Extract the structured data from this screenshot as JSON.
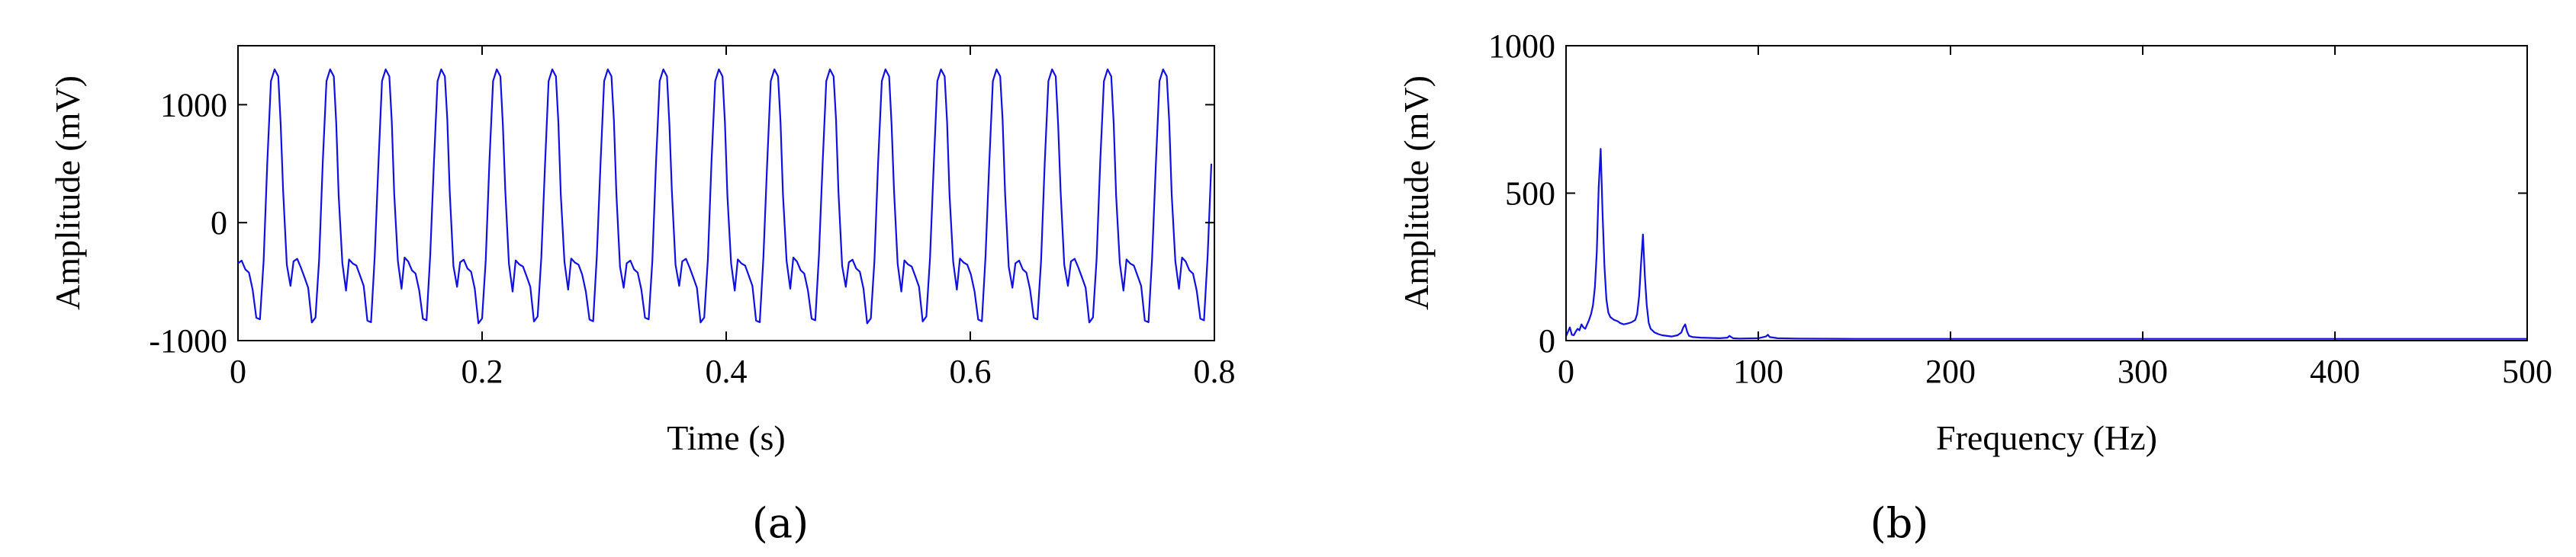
{
  "chart_data": [
    {
      "type": "line",
      "panel_label": "(a)",
      "xlabel": "Time (s)",
      "ylabel": "Amplitude (mV)",
      "xlim": [
        0,
        0.8
      ],
      "ylim": [
        -1000,
        1500
      ],
      "xticks": [
        0,
        0.2,
        0.4,
        0.6,
        0.8
      ],
      "xtick_labels": [
        "0",
        "0.2",
        "0.4",
        "0.6",
        "0.8"
      ],
      "yticks": [
        -1000,
        0,
        1000
      ],
      "ytick_labels": [
        "-1000",
        "0",
        "1000"
      ],
      "grid": false,
      "series": [
        {
          "color": "#1010e0",
          "period_s": 0.0455,
          "x": [
            0,
            0.003,
            0.006,
            0.009,
            0.012,
            0.015,
            0.018,
            0.021,
            0.024,
            0.027,
            0.03,
            0.033,
            0.035,
            0.037,
            0.04,
            0.043,
            0.046,
            0.049,
            0.052,
            0.055,
            0.058,
            0.061,
            0.064,
            0.067,
            0.07,
            0.073,
            0.076,
            0.079,
            0.081,
            0.083,
            0.086,
            0.089
          ],
          "y": [
            -320,
            -330,
            -380,
            -440,
            -560,
            -830,
            -820,
            -300,
            500,
            1200,
            1300,
            1240,
            850,
            250,
            -350,
            -560,
            -560,
            -610,
            -660,
            -690,
            -840,
            -820,
            -300,
            500,
            1200,
            1300,
            1240,
            850,
            250,
            -350,
            -560,
            -560
          ],
          "note_pattern": "repeating waveform, 17.6 cycles over 0.8 s; peaks ~1300 mV, troughs ~-840 mV"
        }
      ]
    },
    {
      "type": "line",
      "panel_label": "(b)",
      "xlabel": "Frequency (Hz)",
      "ylabel": "Amplitude (mV)",
      "xlim": [
        0,
        500
      ],
      "ylim": [
        0,
        1000
      ],
      "xticks": [
        0,
        100,
        200,
        300,
        400,
        500
      ],
      "xtick_labels": [
        "0",
        "100",
        "200",
        "300",
        "400",
        "500"
      ],
      "yticks": [
        0,
        500,
        1000
      ],
      "ytick_labels": [
        "0",
        "500",
        "1000"
      ],
      "grid": false,
      "series": [
        {
          "color": "#1010e0",
          "x": [
            0,
            1,
            2,
            3,
            4,
            5,
            6,
            7,
            8,
            9,
            10,
            11,
            12,
            13,
            14,
            15,
            16,
            17,
            18,
            19,
            20,
            21,
            22,
            23,
            24,
            25,
            26,
            27,
            28,
            30,
            32,
            34,
            36,
            37,
            38,
            39,
            40,
            41,
            42,
            43,
            44,
            46,
            48,
            50,
            55,
            58,
            60,
            61,
            62,
            63,
            64,
            66,
            70,
            80,
            84,
            85,
            86,
            87,
            90,
            100,
            104,
            105,
            106,
            110,
            120,
            150,
            200,
            250,
            300,
            350,
            400,
            450,
            500
          ],
          "y": [
            15,
            30,
            45,
            20,
            18,
            30,
            40,
            35,
            55,
            45,
            40,
            55,
            70,
            90,
            120,
            180,
            300,
            520,
            650,
            430,
            250,
            140,
            95,
            80,
            75,
            70,
            68,
            65,
            60,
            55,
            58,
            62,
            70,
            90,
            150,
            260,
            360,
            220,
            120,
            60,
            40,
            28,
            22,
            18,
            14,
            18,
            28,
            45,
            55,
            30,
            16,
            12,
            10,
            8,
            10,
            16,
            12,
            8,
            7,
            8,
            14,
            20,
            12,
            8,
            7,
            6,
            6,
            6,
            6,
            6,
            6,
            6,
            6
          ]
        }
      ]
    }
  ]
}
